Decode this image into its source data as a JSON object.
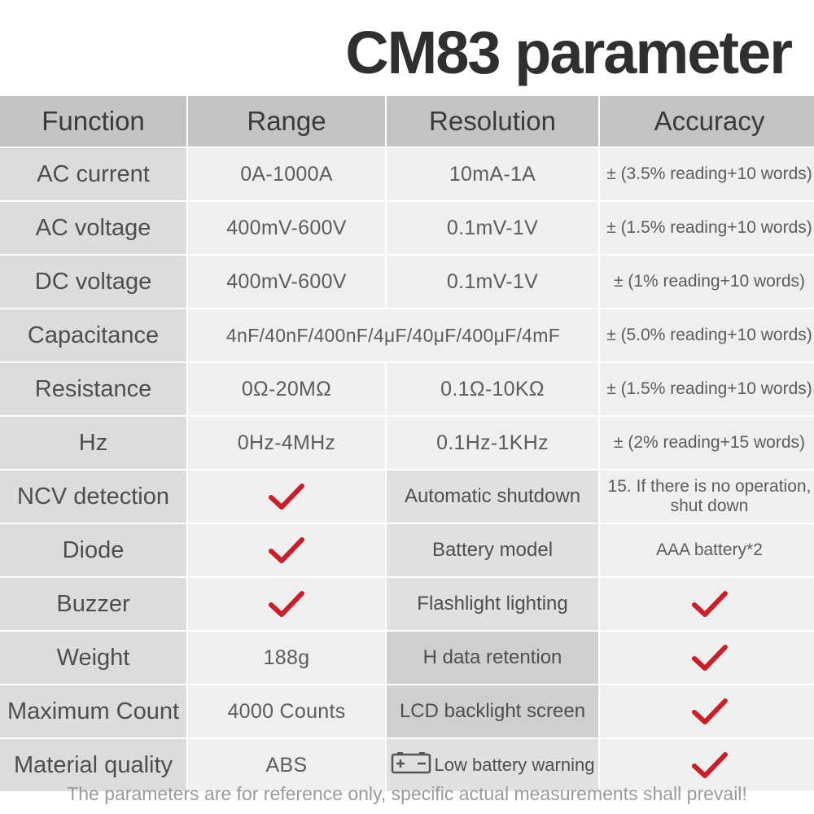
{
  "title": "CM83 parameter",
  "headers": {
    "function": "Function",
    "range": "Range",
    "resolution": "Resolution",
    "accuracy": "Accuracy"
  },
  "rows": [
    {
      "function": "AC current",
      "range": "0A-1000A",
      "resolution": "10mA-1A",
      "accuracy": "± (3.5% reading+10 words)"
    },
    {
      "function": "AC voltage",
      "range": "400mV-600V",
      "resolution": "0.1mV-1V",
      "accuracy": "± (1.5% reading+10 words)"
    },
    {
      "function": "DC voltage",
      "range": "400mV-600V",
      "resolution": "0.1mV-1V",
      "accuracy": "± (1% reading+10 words)"
    },
    {
      "function": "Capacitance",
      "range_full": "4nF/40nF/400nF/4μF/40μF/400μF/4mF",
      "accuracy": "± (5.0% reading+10 words)"
    },
    {
      "function": "Resistance",
      "range": "0Ω-20MΩ",
      "resolution": "0.1Ω-10KΩ",
      "accuracy": "± (1.5% reading+10 words)"
    },
    {
      "function": "Hz",
      "range": "0Hz-4MHz",
      "resolution": "0.1Hz-1KHz",
      "accuracy": "± (2% reading+15 words)"
    }
  ],
  "features": [
    {
      "left_label": "NCV detection",
      "left_value": "check",
      "right_label": "Automatic shutdown",
      "right_value": "15. If there is no operation, shut down"
    },
    {
      "left_label": "Diode",
      "left_value": "check",
      "right_label": "Battery model",
      "right_value": "AAA battery*2"
    },
    {
      "left_label": "Buzzer",
      "left_value": "check",
      "right_label": "Flashlight lighting",
      "right_value": "check"
    },
    {
      "left_label": "Weight",
      "left_value": "188g",
      "right_label": "H data retention",
      "right_value": "check"
    },
    {
      "left_label": "Maximum Count",
      "left_value": "4000 Counts",
      "right_label": "LCD backlight screen",
      "right_value": "check"
    },
    {
      "left_label": "Material quality",
      "left_value": "ABS",
      "right_label": "Low battery warning",
      "right_value": "check",
      "right_icon": "battery-icon"
    }
  ],
  "footer": "The parameters are for reference only, specific actual measurements shall prevail!",
  "colors": {
    "check": "#c8202a",
    "header_bg": "#c4c4c4",
    "function_bg": "#dcdcdc",
    "value_bg": "#efefef",
    "title_text": "#2f2f2f"
  }
}
